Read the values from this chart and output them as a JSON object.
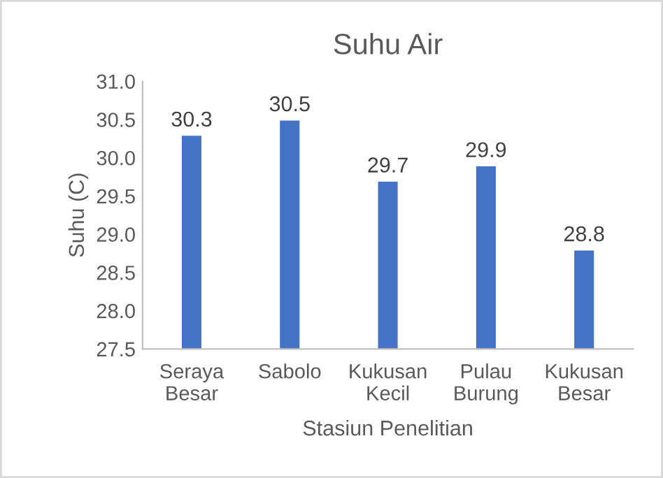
{
  "chart_data": {
    "type": "bar",
    "title": "Suhu Air",
    "xlabel": "Stasiun Penelitian",
    "ylabel": "Suhu (C)",
    "categories": [
      "Seraya\nBesar",
      "Sabolo",
      "Kukusan\nKecil",
      "Pulau\nBurung",
      "Kukusan\nBesar"
    ],
    "values": [
      30.3,
      30.5,
      29.7,
      29.9,
      28.8
    ],
    "color": "#4472c4",
    "ylim": [
      27.5,
      31.0
    ],
    "yticks": [
      {
        "value": 27.5,
        "label": "27.5"
      },
      {
        "value": 28.0,
        "label": "28.0"
      },
      {
        "value": 28.5,
        "label": "28.5"
      },
      {
        "value": 29.0,
        "label": "29.0"
      },
      {
        "value": 29.5,
        "label": "29.5"
      },
      {
        "value": 30.0,
        "label": "30.0"
      },
      {
        "value": 30.5,
        "label": "30.5"
      },
      {
        "value": 31.0,
        "label": "31.0"
      }
    ],
    "data_labels": true,
    "grid": false,
    "legend": false
  }
}
